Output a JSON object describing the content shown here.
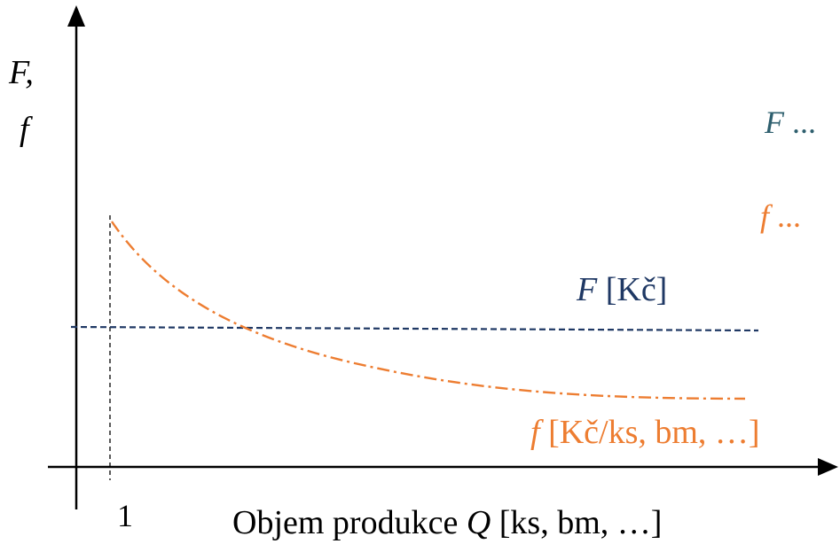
{
  "axes": {
    "y_label_line1": "F,",
    "y_label_line2": "f",
    "x_tick": "1",
    "x_label_before": "Objem produkce ",
    "x_label_var": "Q",
    "x_label_after": " [ks, bm, …]"
  },
  "legend": {
    "F_var": "F",
    "F_ellipsis": " ...",
    "f_var": "f",
    "f_ellipsis": " ..."
  },
  "curves": {
    "F_var": "F",
    "F_unit": " [Kč]",
    "f_var": "f",
    "f_unit": " [Kč/ks, bm, …]"
  },
  "colors": {
    "axis": "#000000",
    "F_line": "#1f3864",
    "F_label": "#1f3864",
    "F_legend": "#2e5f6e",
    "f_curve": "#ed7d31",
    "f_label": "#ed7d31"
  },
  "chart_data": {
    "type": "line",
    "series": [
      {
        "name": "F [Kč]",
        "style": "dashed",
        "shape": "constant"
      },
      {
        "name": "f [Kč/ks, bm, …]",
        "style": "dash-dot",
        "shape": "decreasing"
      }
    ]
  }
}
